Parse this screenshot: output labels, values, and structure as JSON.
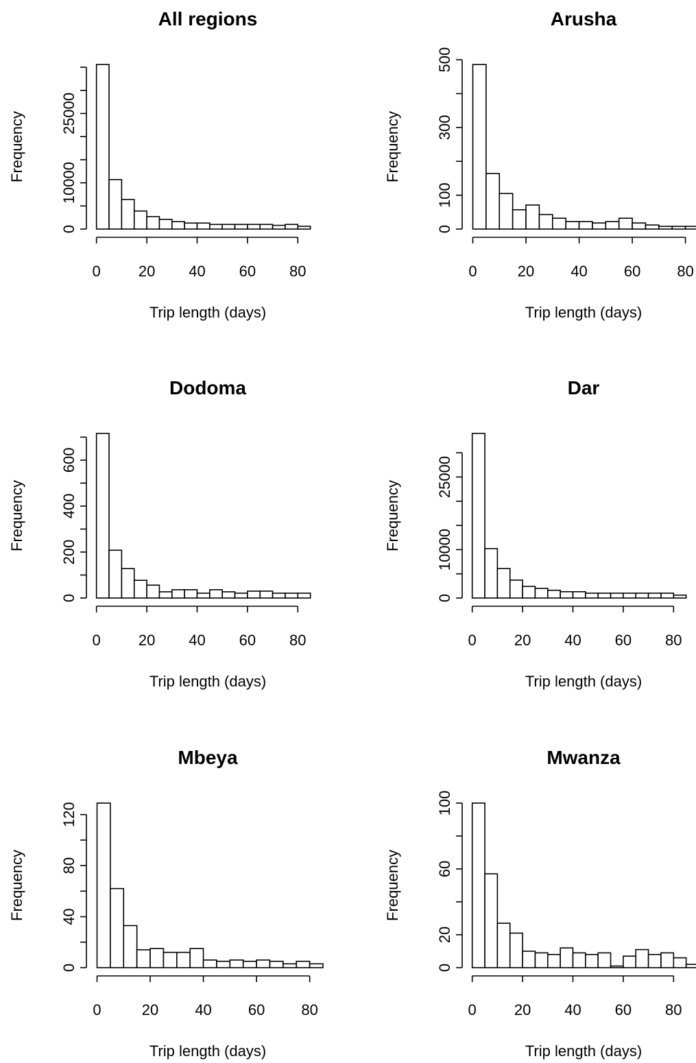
{
  "chart_data": [
    {
      "type": "histogram",
      "title": "All regions",
      "xlabel": "Trip length (days)",
      "ylabel": "Frequency",
      "bins": [
        0,
        5,
        10,
        15,
        20,
        25,
        30,
        35,
        40,
        45,
        50,
        55,
        60,
        65,
        70,
        75,
        80,
        85
      ],
      "values": [
        35600,
        10700,
        6400,
        3900,
        2700,
        2100,
        1600,
        1300,
        1300,
        1000,
        1000,
        1000,
        1000,
        1000,
        800,
        1000,
        600
      ],
      "xlim": [
        -4,
        90
      ],
      "xticks": [
        0,
        20,
        40,
        60,
        80
      ],
      "ylim": [
        0,
        35600
      ],
      "yticks": [
        0,
        10000,
        25000
      ],
      "yminorticks": [
        5000,
        15000,
        20000,
        30000,
        35000
      ]
    },
    {
      "type": "histogram",
      "title": "Arusha",
      "xlabel": "Trip length (days)",
      "ylabel": "Frequency",
      "bins": [
        0,
        5,
        10,
        15,
        20,
        25,
        30,
        35,
        40,
        45,
        50,
        55,
        60,
        65,
        70,
        75,
        80,
        85
      ],
      "values": [
        486,
        164,
        105,
        57,
        71,
        43,
        32,
        22,
        22,
        18,
        22,
        32,
        18,
        12,
        8,
        8,
        8
      ],
      "xlim": [
        -4,
        85
      ],
      "xticks": [
        0,
        20,
        40,
        60,
        80
      ],
      "ylim": [
        0,
        486
      ],
      "yticks": [
        0,
        100,
        300,
        500
      ],
      "yminorticks": [
        200,
        400
      ]
    },
    {
      "type": "histogram",
      "title": "Dodoma",
      "xlabel": "Trip length (days)",
      "ylabel": "Frequency",
      "bins": [
        0,
        5,
        10,
        15,
        20,
        25,
        30,
        35,
        40,
        45,
        50,
        55,
        60,
        65,
        70,
        75,
        80,
        85
      ],
      "values": [
        716,
        208,
        128,
        77,
        56,
        27,
        36,
        36,
        21,
        36,
        27,
        21,
        30,
        30,
        21,
        21,
        21
      ],
      "xlim": [
        -4,
        90
      ],
      "xticks": [
        0,
        20,
        40,
        60,
        80
      ],
      "ylim": [
        0,
        716
      ],
      "yticks": [
        0,
        200,
        400,
        600
      ],
      "yminorticks": [
        100,
        300,
        500,
        700
      ]
    },
    {
      "type": "histogram",
      "title": "Dar",
      "xlabel": "Trip length (days)",
      "ylabel": "Frequency",
      "bins": [
        0,
        5,
        10,
        15,
        20,
        25,
        30,
        35,
        40,
        45,
        50,
        55,
        60,
        65,
        70,
        75,
        80,
        85
      ],
      "values": [
        34000,
        10200,
        6100,
        3700,
        2400,
        2000,
        1600,
        1300,
        1300,
        1000,
        1000,
        1000,
        1000,
        1000,
        1000,
        1000,
        600
      ],
      "xlim": [
        -4,
        90
      ],
      "xticks": [
        0,
        20,
        40,
        60,
        80
      ],
      "ylim": [
        0,
        34000
      ],
      "yticks": [
        0,
        10000,
        25000
      ],
      "yminorticks": [
        5000,
        15000,
        20000,
        30000
      ]
    },
    {
      "type": "histogram",
      "title": "Mbeya",
      "xlabel": "Trip length (days)",
      "ylabel": "Frequency",
      "bins": [
        0,
        5,
        10,
        15,
        20,
        25,
        30,
        35,
        40,
        45,
        50,
        55,
        60,
        65,
        70,
        75,
        80,
        85
      ],
      "values": [
        129,
        62,
        33,
        14,
        15,
        12,
        12,
        15,
        6,
        5,
        6,
        5,
        6,
        5,
        3,
        5,
        3
      ],
      "xlim": [
        -4,
        85
      ],
      "xticks": [
        0,
        20,
        40,
        60,
        80
      ],
      "ylim": [
        0,
        129
      ],
      "yticks": [
        0,
        40,
        80,
        120
      ],
      "yminorticks": [
        20,
        60,
        100
      ]
    },
    {
      "type": "histogram",
      "title": "Mwanza",
      "xlabel": "Trip length (days)",
      "ylabel": "Frequency",
      "bins": [
        0,
        5,
        10,
        15,
        20,
        25,
        30,
        35,
        40,
        45,
        50,
        55,
        60,
        65,
        70,
        75,
        80,
        85,
        90
      ],
      "values": [
        100,
        57,
        27,
        21,
        10,
        9,
        8,
        12,
        9,
        8,
        9,
        1,
        7,
        11,
        8,
        9,
        6,
        2
      ],
      "xlim": [
        -4,
        90
      ],
      "xticks": [
        0,
        20,
        40,
        60,
        80
      ],
      "ylim": [
        0,
        100
      ],
      "yticks": [
        0,
        20,
        60,
        100
      ],
      "yminorticks": [
        40,
        80
      ]
    }
  ]
}
